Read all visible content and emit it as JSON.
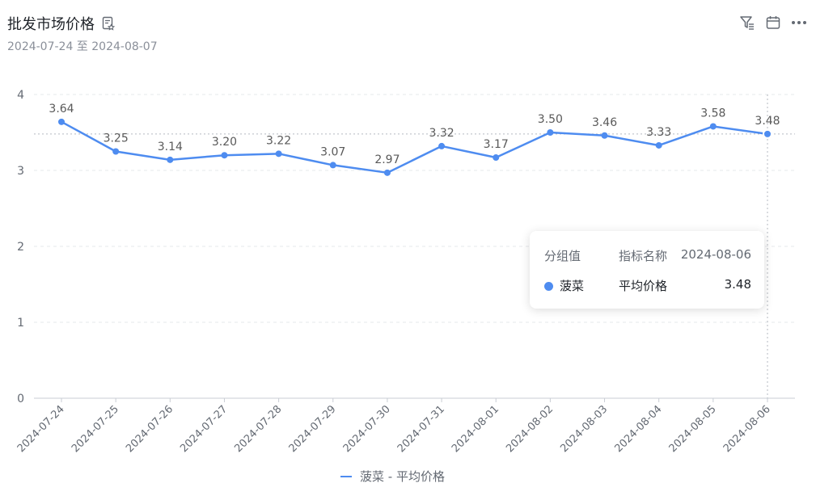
{
  "header": {
    "title": "批发市场价格",
    "subtitle": "2024-07-24 至 2024-08-07"
  },
  "icons": {
    "title_icon": "bookmark-doc-icon",
    "filter": "filter-icon",
    "calendar": "calendar-icon",
    "more": "more-icon"
  },
  "colors": {
    "series": "#4e8cf0",
    "grid": "#e6e8eb",
    "axis": "#c9cdd4",
    "tick": "#646a73"
  },
  "tooltip": {
    "col1": "分组值",
    "col2": "指标名称",
    "col3": "2024-08-06",
    "group": "菠菜",
    "metric": "平均价格",
    "value": "3.48"
  },
  "legend": {
    "label": "菠菜 - 平均价格"
  },
  "chart_data": {
    "type": "line",
    "categories": [
      "2024-07-24",
      "2024-07-25",
      "2024-07-26",
      "2024-07-27",
      "2024-07-28",
      "2024-07-29",
      "2024-07-30",
      "2024-07-31",
      "2024-08-01",
      "2024-08-02",
      "2024-08-03",
      "2024-08-04",
      "2024-08-05",
      "2024-08-06"
    ],
    "series": [
      {
        "name": "菠菜 - 平均价格",
        "values": [
          3.64,
          3.25,
          3.14,
          3.2,
          3.22,
          3.07,
          2.97,
          3.32,
          3.17,
          3.5,
          3.46,
          3.33,
          3.58,
          3.48
        ],
        "labels": [
          "3.64",
          "3.25",
          "3.14",
          "3.20",
          "3.22",
          "3.07",
          "2.97",
          "3.32",
          "3.17",
          "3.50",
          "3.46",
          "3.33",
          "3.58",
          "3.48"
        ]
      }
    ],
    "ylim": [
      0,
      4
    ],
    "yticks": [
      "0",
      "1",
      "2",
      "3",
      "4"
    ],
    "grid": true,
    "legend_position": "bottom"
  }
}
